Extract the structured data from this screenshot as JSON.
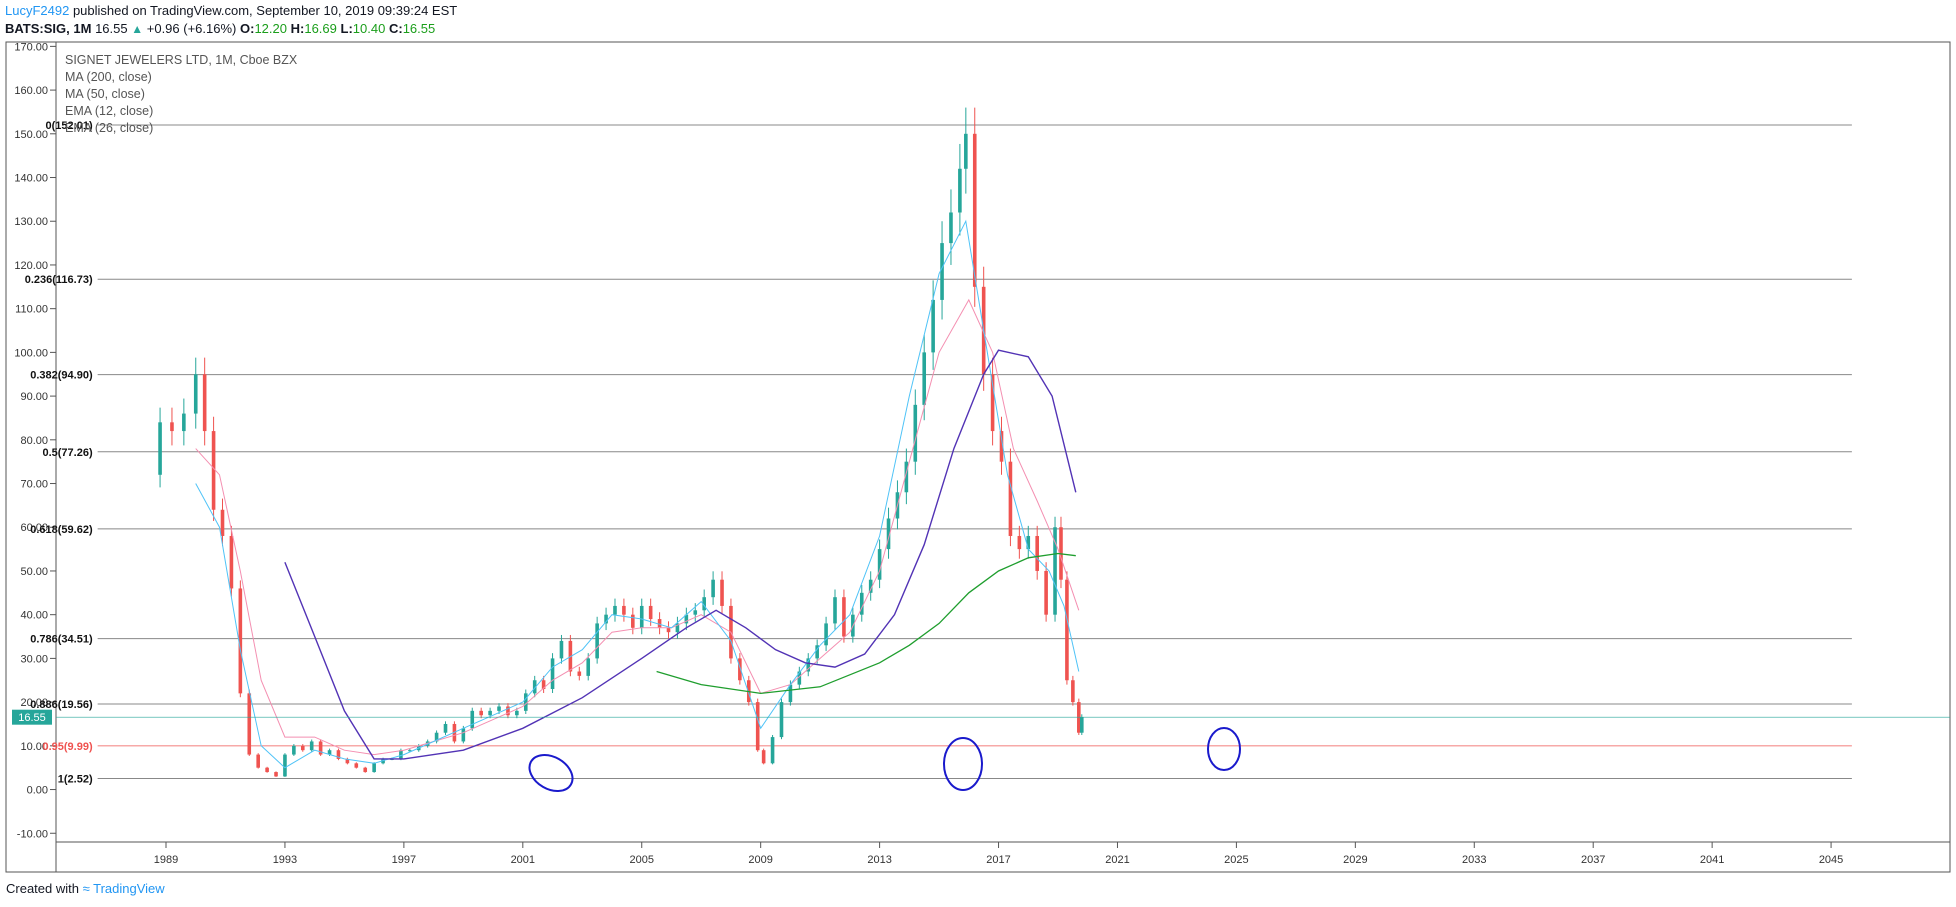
{
  "header": {
    "author": "LucyF2492",
    "published_text": "published on TradingView.com, September 10, 2019 09:39:24 EST",
    "symbol": "BATS:SIG, 1M",
    "last": "16.55",
    "change_arrow": "▲",
    "change": "+0.96 (+6.16%)",
    "o_label": "O:",
    "o": "12.20",
    "h_label": "H:",
    "h": "16.69",
    "l_label": "L:",
    "l": "10.40",
    "c_label": "C:",
    "c": "16.55"
  },
  "legend": {
    "title": "SIGNET JEWELERS LTD, 1M, Cboe BZX",
    "items": [
      "MA (200, close)",
      "MA (50, close)",
      "EMA (12, close)",
      "EMA (26, close)"
    ]
  },
  "price_tag": "16.55",
  "footer": {
    "created": "Created with",
    "brand": "TradingView"
  },
  "colors": {
    "up": "#26a69a",
    "down": "#ef5350",
    "ma200": "#1f9e2e",
    "ma50": "#5233b5",
    "ema12": "#4fc3f7",
    "ema26": "#f48fb1",
    "fib": "#888888",
    "fib95": "#ef5350",
    "annotation": "#1a1acc",
    "price_tag_bg": "#26a69a"
  },
  "chart_data": {
    "type": "candlestick",
    "y_ticks": [
      "170.00",
      "160.00",
      "150.00",
      "140.00",
      "130.00",
      "120.00",
      "110.00",
      "100.00",
      "90.00",
      "80.00",
      "70.00",
      "60.00",
      "50.00",
      "40.00",
      "30.00",
      "20.00",
      "10.00",
      "0.00",
      "-10.00"
    ],
    "x_ticks": [
      "1989",
      "1993",
      "1997",
      "2001",
      "2005",
      "2009",
      "2013",
      "2017",
      "2021",
      "2025",
      "2029",
      "2033",
      "2037",
      "2041",
      "2045"
    ],
    "ylim": [
      -12,
      171
    ],
    "xlim": [
      1985.3,
      2049.0
    ],
    "fib_levels": [
      {
        "label": "0(152.01)",
        "value": 152.01
      },
      {
        "label": "0.236(116.73)",
        "value": 116.73
      },
      {
        "label": "0.382(94.90)",
        "value": 94.9
      },
      {
        "label": "0.5(77.26)",
        "value": 77.26
      },
      {
        "label": "0.618(59.62)",
        "value": 59.62
      },
      {
        "label": "0.786(34.51)",
        "value": 34.51
      },
      {
        "label": "0.886(19.56)",
        "value": 19.56
      },
      {
        "label": "0.95(9.99)",
        "value": 9.99
      },
      {
        "label": "1(2.52)",
        "value": 2.52
      }
    ],
    "fib_x_range": [
      1986.7,
      2045.7
    ],
    "close_series": [
      [
        1988.5,
        72
      ],
      [
        1988.8,
        84
      ],
      [
        1989.2,
        82
      ],
      [
        1989.6,
        86
      ],
      [
        1990.0,
        95
      ],
      [
        1990.3,
        82
      ],
      [
        1990.6,
        64
      ],
      [
        1990.9,
        58
      ],
      [
        1991.2,
        46
      ],
      [
        1991.5,
        22
      ],
      [
        1991.8,
        8
      ],
      [
        1992.1,
        5
      ],
      [
        1992.4,
        4
      ],
      [
        1992.7,
        3
      ],
      [
        1993.0,
        8
      ],
      [
        1993.3,
        10
      ],
      [
        1993.6,
        9
      ],
      [
        1993.9,
        11
      ],
      [
        1994.2,
        8
      ],
      [
        1994.5,
        9
      ],
      [
        1994.8,
        7
      ],
      [
        1995.1,
        6
      ],
      [
        1995.4,
        5
      ],
      [
        1995.7,
        4
      ],
      [
        1996.0,
        6
      ],
      [
        1996.3,
        7
      ],
      [
        1996.6,
        7
      ],
      [
        1996.9,
        9
      ],
      [
        1997.2,
        9
      ],
      [
        1997.5,
        10
      ],
      [
        1997.8,
        11
      ],
      [
        1998.1,
        13
      ],
      [
        1998.4,
        15
      ],
      [
        1998.7,
        11
      ],
      [
        1999.0,
        14
      ],
      [
        1999.3,
        18
      ],
      [
        1999.6,
        17
      ],
      [
        1999.9,
        18
      ],
      [
        2000.2,
        19
      ],
      [
        2000.5,
        17
      ],
      [
        2000.8,
        18
      ],
      [
        2001.1,
        22
      ],
      [
        2001.4,
        25
      ],
      [
        2001.7,
        23
      ],
      [
        2002.0,
        30
      ],
      [
        2002.3,
        34
      ],
      [
        2002.6,
        27
      ],
      [
        2002.9,
        26
      ],
      [
        2003.2,
        30
      ],
      [
        2003.5,
        38
      ],
      [
        2003.8,
        40
      ],
      [
        2004.1,
        42
      ],
      [
        2004.4,
        40
      ],
      [
        2004.7,
        37
      ],
      [
        2005.0,
        42
      ],
      [
        2005.3,
        39
      ],
      [
        2005.6,
        37
      ],
      [
        2005.9,
        36
      ],
      [
        2006.2,
        38
      ],
      [
        2006.5,
        40
      ],
      [
        2006.8,
        41
      ],
      [
        2007.1,
        44
      ],
      [
        2007.4,
        48
      ],
      [
        2007.7,
        42
      ],
      [
        2008.0,
        30
      ],
      [
        2008.3,
        25
      ],
      [
        2008.6,
        20
      ],
      [
        2008.9,
        9
      ],
      [
        2009.1,
        6
      ],
      [
        2009.4,
        12
      ],
      [
        2009.7,
        20
      ],
      [
        2010.0,
        24
      ],
      [
        2010.3,
        27
      ],
      [
        2010.6,
        30
      ],
      [
        2010.9,
        33
      ],
      [
        2011.2,
        38
      ],
      [
        2011.5,
        44
      ],
      [
        2011.8,
        35
      ],
      [
        2012.1,
        40
      ],
      [
        2012.4,
        45
      ],
      [
        2012.7,
        48
      ],
      [
        2013.0,
        55
      ],
      [
        2013.3,
        62
      ],
      [
        2013.6,
        68
      ],
      [
        2013.9,
        75
      ],
      [
        2014.2,
        88
      ],
      [
        2014.5,
        100
      ],
      [
        2014.8,
        112
      ],
      [
        2015.1,
        125
      ],
      [
        2015.4,
        132
      ],
      [
        2015.7,
        142
      ],
      [
        2015.9,
        150
      ],
      [
        2016.2,
        115
      ],
      [
        2016.5,
        95
      ],
      [
        2016.8,
        82
      ],
      [
        2017.1,
        75
      ],
      [
        2017.4,
        58
      ],
      [
        2017.7,
        55
      ],
      [
        2018.0,
        58
      ],
      [
        2018.3,
        50
      ],
      [
        2018.6,
        40
      ],
      [
        2018.9,
        60
      ],
      [
        2019.1,
        48
      ],
      [
        2019.3,
        25
      ],
      [
        2019.5,
        20
      ],
      [
        2019.7,
        13
      ],
      [
        2019.8,
        16.55
      ]
    ],
    "ma200": [
      [
        2005.5,
        27
      ],
      [
        2007,
        24
      ],
      [
        2009,
        22
      ],
      [
        2011,
        23.5
      ],
      [
        2013,
        29
      ],
      [
        2014,
        33
      ],
      [
        2015,
        38
      ],
      [
        2016,
        45
      ],
      [
        2017,
        50
      ],
      [
        2018,
        53
      ],
      [
        2019,
        54
      ],
      [
        2019.6,
        53.5
      ]
    ],
    "ma50": [
      [
        1993,
        52
      ],
      [
        1994,
        35
      ],
      [
        1995,
        18
      ],
      [
        1996,
        7
      ],
      [
        1997,
        7
      ],
      [
        1999,
        9
      ],
      [
        2001,
        14
      ],
      [
        2003,
        21
      ],
      [
        2005,
        30
      ],
      [
        2006.5,
        37
      ],
      [
        2007.5,
        41
      ],
      [
        2008.5,
        37
      ],
      [
        2009.5,
        32
      ],
      [
        2010.5,
        29
      ],
      [
        2011.5,
        28
      ],
      [
        2012.5,
        31
      ],
      [
        2013.5,
        40
      ],
      [
        2014.5,
        56
      ],
      [
        2015.5,
        78
      ],
      [
        2016.5,
        95
      ],
      [
        2017,
        100.5
      ],
      [
        2018,
        99
      ],
      [
        2018.8,
        90
      ],
      [
        2019.6,
        68
      ]
    ],
    "ema12": [
      [
        1990,
        70
      ],
      [
        1990.8,
        60
      ],
      [
        1991.5,
        32
      ],
      [
        1992.2,
        10
      ],
      [
        1993,
        5
      ],
      [
        1994,
        9
      ],
      [
        1995,
        7
      ],
      [
        1996,
        6
      ],
      [
        1997,
        8
      ],
      [
        1998,
        11
      ],
      [
        1999,
        14
      ],
      [
        2000,
        17
      ],
      [
        2001,
        20
      ],
      [
        2002,
        28
      ],
      [
        2003,
        32
      ],
      [
        2004,
        40
      ],
      [
        2005,
        39
      ],
      [
        2006,
        37
      ],
      [
        2007,
        43
      ],
      [
        2008,
        34
      ],
      [
        2009,
        14
      ],
      [
        2010,
        24
      ],
      [
        2011,
        33
      ],
      [
        2012,
        40
      ],
      [
        2013,
        58
      ],
      [
        2014,
        90
      ],
      [
        2015,
        118
      ],
      [
        2015.9,
        130
      ],
      [
        2016.5,
        105
      ],
      [
        2017.3,
        72
      ],
      [
        2018,
        55
      ],
      [
        2018.7,
        50
      ],
      [
        2019.2,
        42
      ],
      [
        2019.7,
        27
      ]
    ],
    "ema26": [
      [
        1990,
        78
      ],
      [
        1990.8,
        72
      ],
      [
        1991.5,
        50
      ],
      [
        1992.2,
        25
      ],
      [
        1993,
        12
      ],
      [
        1994,
        12
      ],
      [
        1995,
        9
      ],
      [
        1996,
        8
      ],
      [
        1997,
        9
      ],
      [
        1998,
        11
      ],
      [
        1999,
        13
      ],
      [
        2000,
        16
      ],
      [
        2001,
        19
      ],
      [
        2002,
        25
      ],
      [
        2003,
        29
      ],
      [
        2004,
        36
      ],
      [
        2005,
        37
      ],
      [
        2006,
        37
      ],
      [
        2007,
        40
      ],
      [
        2008,
        36
      ],
      [
        2009,
        22
      ],
      [
        2010,
        24
      ],
      [
        2011,
        30
      ],
      [
        2012,
        36
      ],
      [
        2013,
        50
      ],
      [
        2014,
        75
      ],
      [
        2015,
        100
      ],
      [
        2016,
        112
      ],
      [
        2016.8,
        100
      ],
      [
        2017.5,
        78
      ],
      [
        2018.3,
        66
      ],
      [
        2019,
        55
      ],
      [
        2019.7,
        41
      ]
    ],
    "annotations": [
      "ellipse-1992",
      "ellipse-2008",
      "ellipse-2019"
    ]
  }
}
